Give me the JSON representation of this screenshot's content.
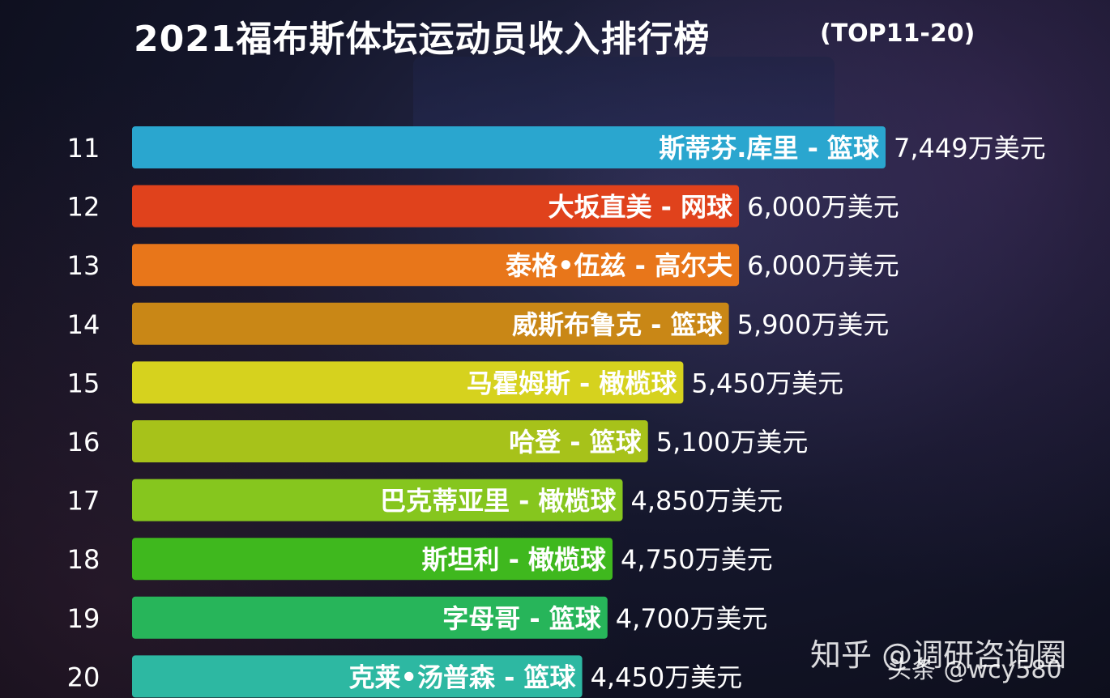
{
  "chart_data": {
    "type": "bar",
    "orientation": "horizontal",
    "title": "2021福布斯体坛运动员收入排行榜",
    "subtitle": "(TOP11-20)",
    "value_suffix": "万美元",
    "grid": false,
    "ranks": [
      "11",
      "12",
      "13",
      "14",
      "15",
      "16",
      "17",
      "18",
      "19",
      "20"
    ],
    "categories": [
      "斯蒂芬.库里 - 篮球",
      "大坂直美 - 网球",
      "泰格•伍兹 - 高尔夫",
      "威斯布鲁克 - 篮球",
      "马霍姆斯 - 橄榄球",
      "哈登 - 篮球",
      "巴克蒂亚里 - 橄榄球",
      "斯坦利 - 橄榄球",
      "字母哥 - 篮球",
      "克莱•汤普森 - 篮球"
    ],
    "values": [
      7449,
      6000,
      6000,
      5900,
      5450,
      5100,
      4850,
      4750,
      4700,
      4450
    ],
    "value_labels": [
      "7,449万美元",
      "6,000万美元",
      "6,000万美元",
      "5,900万美元",
      "5,450万美元",
      "5,100万美元",
      "4,850万美元",
      "4,750万美元",
      "4,700万美元",
      "4,450万美元"
    ],
    "colors": [
      "#2aa6cf",
      "#e0421c",
      "#e8761a",
      "#c98716",
      "#d6d21e",
      "#a7c21a",
      "#86c61e",
      "#3fb81e",
      "#27b55a",
      "#2db8a2"
    ]
  },
  "watermark": {
    "line1": "知乎 @调研咨询圈",
    "line2": "头条 @wcy580"
  }
}
